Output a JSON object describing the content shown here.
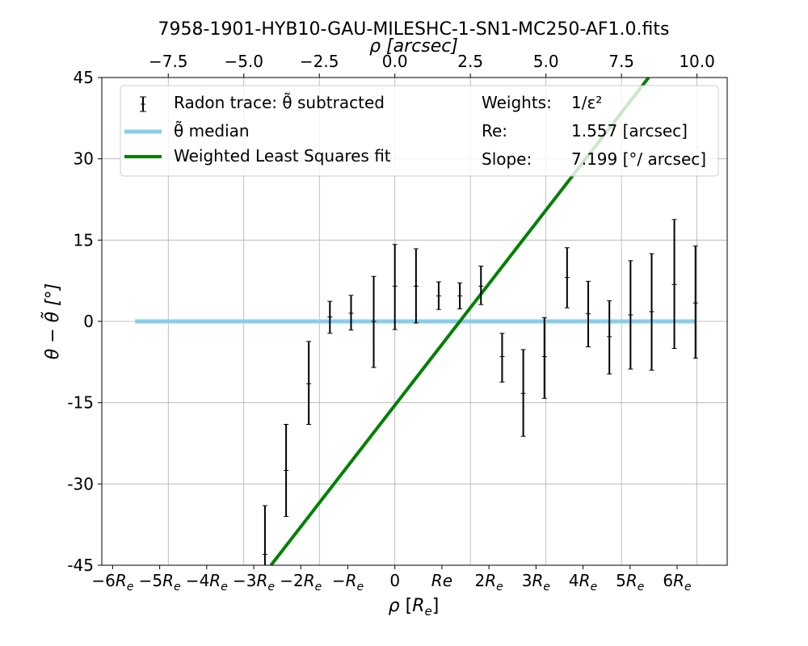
{
  "chart_data": {
    "type": "scatter",
    "title": "7958-1901-HYB10-GAU-MILESHC-1-SN1-MC250-AF1.0.fits",
    "xlabel_bottom": "ρ [R_e]",
    "xlabel_top": "ρ [arcsec]",
    "ylabel": "θ − θ̃ [°]",
    "re_arcsec": 1.557,
    "xlim_arcsec": [
      -9.7,
      11.0
    ],
    "ylim": [
      -45,
      45
    ],
    "yticks": [
      -45,
      -30,
      -15,
      0,
      15,
      30,
      45
    ],
    "ytick_labels": [
      "-45",
      "-30",
      "-15",
      "0",
      "15",
      "30",
      "45"
    ],
    "top_ticks": [
      -7.5,
      -5.0,
      -2.5,
      0.0,
      2.5,
      5.0,
      7.5,
      10.0
    ],
    "top_tick_labels": [
      "−7.5",
      "−5.0",
      "−2.5",
      "0.0",
      "2.5",
      "5.0",
      "7.5",
      "10.0"
    ],
    "bottom_ticks_re": [
      -6,
      -5,
      -4,
      -3,
      -2,
      -1,
      0,
      1,
      2,
      3,
      4,
      5,
      6
    ],
    "bottom_tick_labels": [
      {
        "main": "−6R",
        "sub": "e"
      },
      {
        "main": "−5R",
        "sub": "e"
      },
      {
        "main": "−4R",
        "sub": "e"
      },
      {
        "main": "−3R",
        "sub": "e"
      },
      {
        "main": "−2R",
        "sub": "e"
      },
      {
        "main": "−R",
        "sub": "e"
      },
      {
        "main": "0",
        "sub": ""
      },
      {
        "main": "Re",
        "sub": ""
      },
      {
        "main": "2R",
        "sub": "e"
      },
      {
        "main": "3R",
        "sub": "e"
      },
      {
        "main": "4R",
        "sub": "e"
      },
      {
        "main": "5R",
        "sub": "e"
      },
      {
        "main": "6R",
        "sub": "e"
      }
    ],
    "grid": true,
    "legend": {
      "placement": "top",
      "entries": [
        "Radon trace: θ̃ subtracted",
        "θ̃ median",
        "Weighted Least Squares fit"
      ],
      "info": [
        {
          "label": "Weights:",
          "value": "1/ε²"
        },
        {
          "label": "Re:",
          "value": "1.557 [arcsec]"
        },
        {
          "label": "Slope:",
          "value": "7.199 [°/ arcsec]"
        }
      ]
    },
    "series": [
      {
        "name": "Radon trace: θ̃ subtracted",
        "kind": "errorbar",
        "color": "#000000",
        "points": [
          {
            "x": -4.3,
            "y": -43.0,
            "lo": -50.0,
            "hi": -34.0
          },
          {
            "x": -3.6,
            "y": -27.5,
            "lo": -36.0,
            "hi": -19.0
          },
          {
            "x": -2.85,
            "y": -11.5,
            "lo": -19.0,
            "hi": -3.7
          },
          {
            "x": -2.15,
            "y": 0.8,
            "lo": -2.2,
            "hi": 3.7
          },
          {
            "x": -1.45,
            "y": 1.5,
            "lo": -1.6,
            "hi": 4.8
          },
          {
            "x": -0.7,
            "y": 0.0,
            "lo": -8.5,
            "hi": 8.3
          },
          {
            "x": 0.0,
            "y": 6.5,
            "lo": -1.5,
            "hi": 14.2
          },
          {
            "x": 0.7,
            "y": 6.5,
            "lo": -0.3,
            "hi": 13.4
          },
          {
            "x": 1.45,
            "y": 4.7,
            "lo": 2.2,
            "hi": 7.3
          },
          {
            "x": 2.15,
            "y": 4.7,
            "lo": 2.3,
            "hi": 7.1
          },
          {
            "x": 2.85,
            "y": 6.5,
            "lo": 3.1,
            "hi": 10.2
          },
          {
            "x": 3.55,
            "y": -6.5,
            "lo": -11.2,
            "hi": -2.2
          },
          {
            "x": 4.25,
            "y": -13.3,
            "lo": -21.2,
            "hi": -5.2
          },
          {
            "x": 4.95,
            "y": -6.5,
            "lo": -14.2,
            "hi": 0.7
          },
          {
            "x": 5.7,
            "y": 8.1,
            "lo": 2.5,
            "hi": 13.6
          },
          {
            "x": 6.4,
            "y": 1.4,
            "lo": -4.7,
            "hi": 7.4
          },
          {
            "x": 7.1,
            "y": -2.8,
            "lo": -9.7,
            "hi": 3.8
          },
          {
            "x": 7.8,
            "y": 1.2,
            "lo": -8.8,
            "hi": 11.2
          },
          {
            "x": 8.5,
            "y": 1.8,
            "lo": -9.0,
            "hi": 12.5
          },
          {
            "x": 9.25,
            "y": 6.8,
            "lo": -5.0,
            "hi": 18.8
          },
          {
            "x": 9.95,
            "y": 3.4,
            "lo": -6.8,
            "hi": 13.9
          }
        ]
      },
      {
        "name": "θ̃ median",
        "kind": "line",
        "color": "#87ceeb",
        "x": [
          -8.6,
          9.95
        ],
        "y": [
          0,
          0
        ]
      },
      {
        "name": "Weighted Least Squares fit",
        "kind": "line",
        "color": "#008000",
        "slope": 7.199,
        "x": [
          -4.1,
          8.4
        ],
        "y": [
          -45,
          45
        ]
      }
    ]
  }
}
